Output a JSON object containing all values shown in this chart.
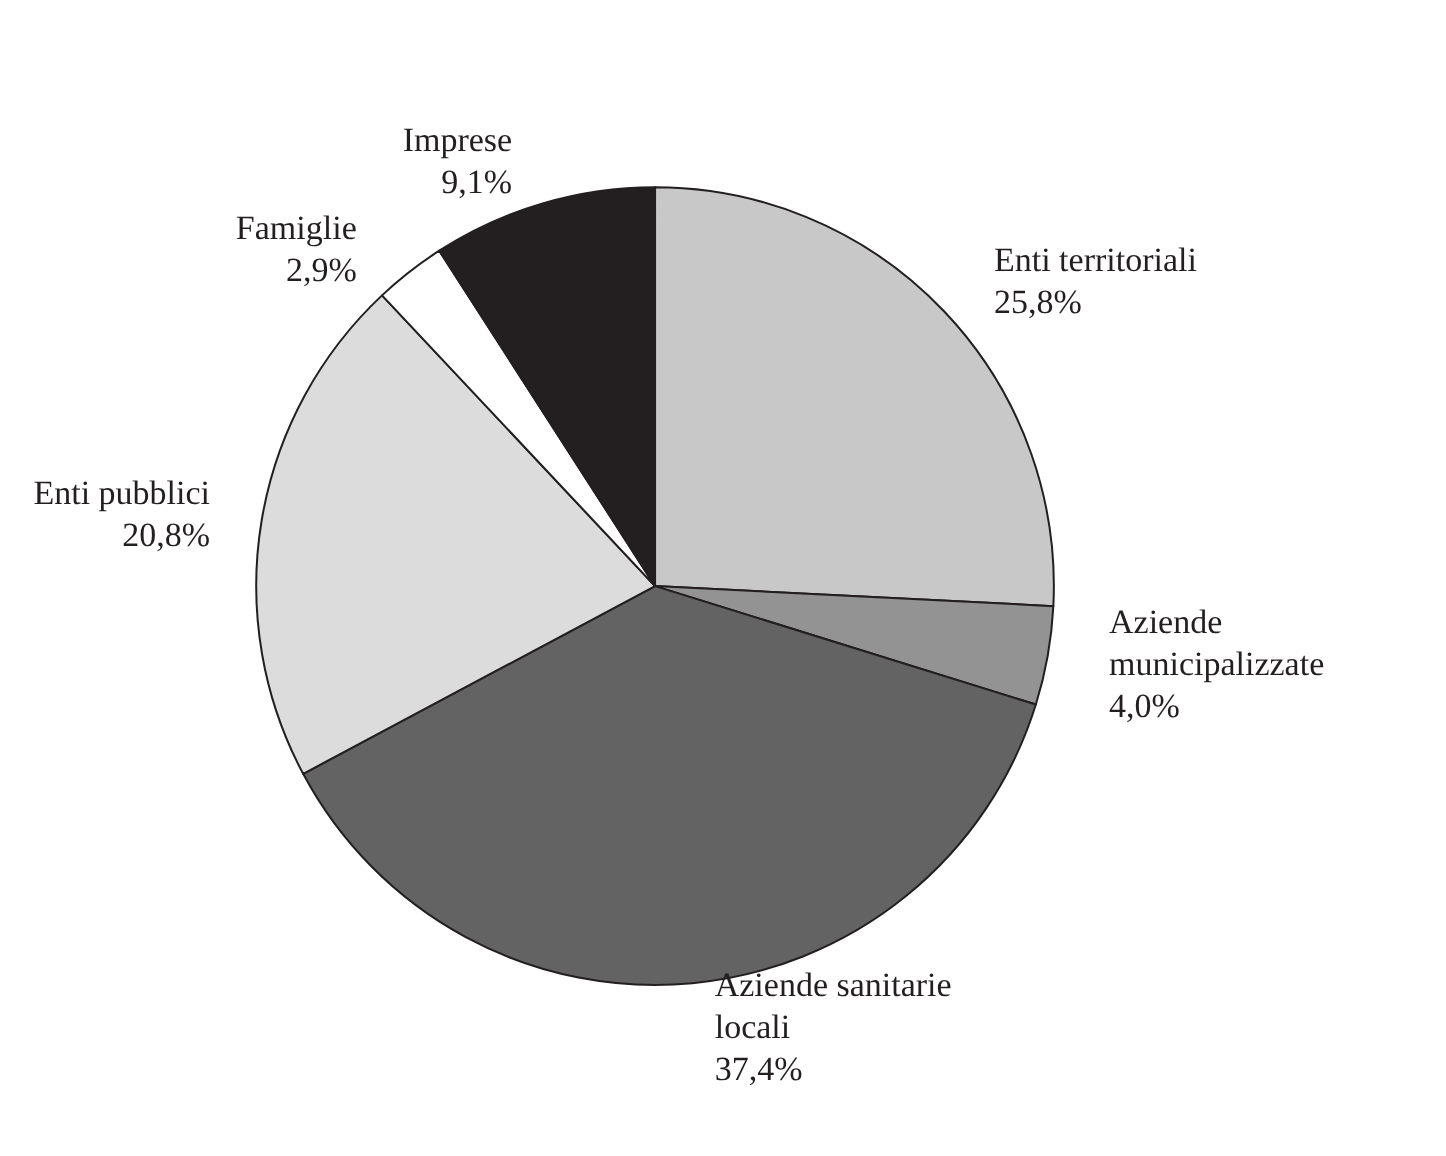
{
  "chart_data": {
    "type": "pie",
    "categories": [
      "Enti territoriali",
      "Aziende municipalizzate",
      "Aziende sanitarie locali",
      "Enti pubblici",
      "Famiglie",
      "Imprese"
    ],
    "values": [
      25.8,
      4.0,
      37.4,
      20.8,
      2.9,
      9.1
    ],
    "colors": [
      "#c8c8c8",
      "#939393",
      "#636363",
      "#dcdcdc",
      "#ffffff",
      "#231f20"
    ],
    "value_labels": [
      "25,8%",
      "4,0%",
      "37,4%",
      "20,8%",
      "2,9%",
      "9,1%"
    ],
    "legend": false
  }
}
